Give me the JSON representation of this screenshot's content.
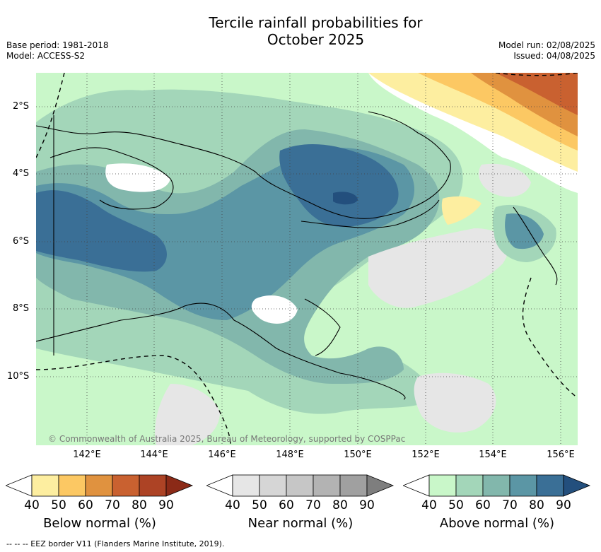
{
  "title_line1": "Tercile rainfall probabilities for",
  "title_line2": "October 2025",
  "base_period": "Base period: 1981-2018",
  "model": "Model: ACCESS-S2",
  "model_run": "Model run: 02/08/2025",
  "issued": "Issued: 04/08/2025",
  "lat_labels": [
    "2°S",
    "4°S",
    "6°S",
    "8°S",
    "10°S"
  ],
  "lon_labels": [
    "142°E",
    "144°E",
    "146°E",
    "148°E",
    "150°E",
    "152°E",
    "154°E",
    "156°E"
  ],
  "credit": "© Commonwealth of Australia 2025, Bureau of Meteorology, supported by COSPPac",
  "eez_note": "-- -- -- EEZ border V11 (Flanders Marine Institute, 2019).",
  "colorbars": [
    {
      "title": "Below normal (%)",
      "ticks": [
        "40",
        "50",
        "60",
        "70",
        "80",
        "90"
      ],
      "colors": [
        "#ffffff",
        "#fdeea0",
        "#fcc863",
        "#e0923f",
        "#c96130",
        "#ad4325",
        "#8b2a17"
      ]
    },
    {
      "title": "Near normal (%)",
      "ticks": [
        "40",
        "50",
        "60",
        "70",
        "80",
        "90"
      ],
      "colors": [
        "#ffffff",
        "#e6e6e6",
        "#d6d6d6",
        "#c6c6c6",
        "#b3b3b3",
        "#a0a0a0",
        "#7e7e7e"
      ]
    },
    {
      "title": "Above normal (%)",
      "ticks": [
        "40",
        "50",
        "60",
        "70",
        "80",
        "90"
      ],
      "colors": [
        "#ffffff",
        "#c9f7c9",
        "#a3d6b9",
        "#82b7ac",
        "#5b96a5",
        "#3a6f96",
        "#234f7d"
      ]
    }
  ]
}
